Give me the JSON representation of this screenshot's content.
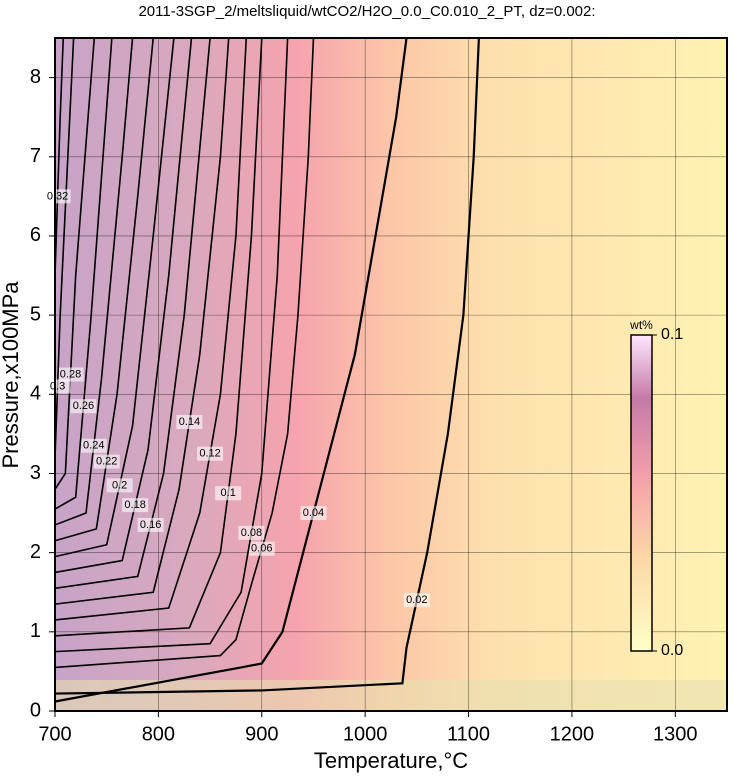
{
  "chart_data": {
    "type": "contour",
    "title": "2011-3SGP_2/meltsliquid/wtCO2/H2O_0.0_C0.010_2_PT, dz=0.002:",
    "x_label": "Temperature,°C",
    "y_label": "Pressure,x100MPa",
    "xlim": [
      700,
      1350
    ],
    "ylim": [
      0,
      8.5
    ],
    "xticks": [
      700,
      800,
      900,
      1000,
      1100,
      1200,
      1300
    ],
    "yticks": [
      0,
      1,
      2,
      3,
      4,
      5,
      6,
      7,
      8
    ],
    "grid": true,
    "colorbar": {
      "label": "wt%",
      "lim": [
        0,
        0.1
      ],
      "ticks": [
        {
          "value": 0,
          "label": "0.0"
        },
        0.1
      ]
    },
    "contours": [
      {
        "level": 0.02,
        "x": [
          700,
          900,
          1036,
          1040,
          1060,
          1080,
          1095,
          1105,
          1110
        ],
        "y": [
          0.22,
          0.26,
          0.35,
          0.8,
          2,
          3.5,
          5,
          7,
          8.5
        ]
      },
      {
        "level": 0.04,
        "x": [
          700,
          880,
          900,
          920,
          940,
          960,
          990,
          1010,
          1030,
          1040
        ],
        "y": [
          0.12,
          0.55,
          0.6,
          1,
          2,
          3,
          4.5,
          6,
          7.5,
          8.5
        ]
      },
      {
        "level": 0.06,
        "x": [
          700,
          860,
          875,
          890,
          910,
          925,
          935,
          945,
          950
        ],
        "y": [
          0.55,
          0.7,
          0.9,
          1.6,
          2.5,
          3.5,
          5,
          7,
          8.5
        ]
      },
      {
        "level": 0.08,
        "x": [
          700,
          850,
          880,
          900,
          915,
          925
        ],
        "y": [
          0.75,
          0.85,
          1.5,
          3,
          5.5,
          8.5
        ]
      },
      {
        "level": 0.1,
        "x": [
          700,
          830,
          860,
          875,
          890,
          900
        ],
        "y": [
          0.95,
          1.05,
          2,
          3.5,
          6,
          8.5
        ]
      },
      {
        "level": 0.12,
        "x": [
          700,
          810,
          840,
          860,
          875,
          885
        ],
        "y": [
          1.15,
          1.3,
          2.5,
          4,
          6,
          8.5
        ]
      },
      {
        "level": 0.14,
        "x": [
          700,
          795,
          820,
          840,
          860,
          868
        ],
        "y": [
          1.35,
          1.5,
          2.8,
          4.5,
          7,
          8.5
        ]
      },
      {
        "level": 0.16,
        "x": [
          700,
          780,
          805,
          825,
          850
        ],
        "y": [
          1.55,
          1.7,
          3,
          5,
          8.5
        ]
      },
      {
        "level": 0.18,
        "x": [
          700,
          765,
          790,
          810,
          832
        ],
        "y": [
          1.75,
          1.9,
          3.3,
          5.5,
          8.5
        ]
      },
      {
        "level": 0.2,
        "x": [
          700,
          750,
          775,
          795,
          815
        ],
        "y": [
          1.95,
          2.1,
          3.6,
          6,
          8.5
        ]
      },
      {
        "level": 0.22,
        "x": [
          700,
          740,
          760,
          780,
          795
        ],
        "y": [
          2.15,
          2.3,
          4,
          6.5,
          8.5
        ]
      },
      {
        "level": 0.24,
        "x": [
          700,
          730,
          745,
          765,
          775
        ],
        "y": [
          2.35,
          2.5,
          4.2,
          7,
          8.5
        ]
      },
      {
        "level": 0.26,
        "x": [
          700,
          720,
          735,
          755
        ],
        "y": [
          2.55,
          2.7,
          5,
          8.5
        ]
      },
      {
        "level": 0.28,
        "x": [
          700,
          710,
          720,
          738
        ],
        "y": [
          2.8,
          3,
          5.5,
          8.5
        ]
      },
      {
        "level": 0.3,
        "x": [
          700,
          705,
          718
        ],
        "y": [
          3.2,
          5,
          8.5
        ]
      },
      {
        "level": 0.32,
        "x": [
          700,
          705,
          708
        ],
        "y": [
          5.5,
          7.5,
          8.5
        ]
      }
    ]
  }
}
